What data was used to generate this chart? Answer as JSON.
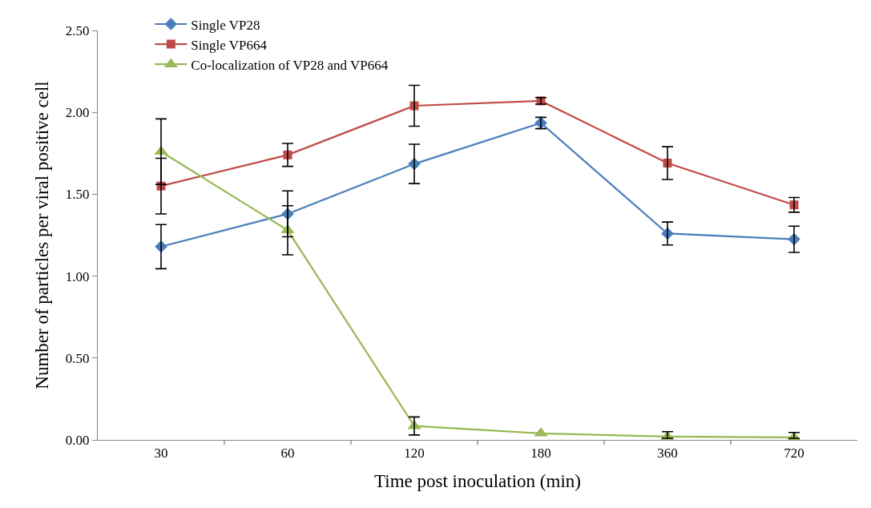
{
  "chart_data": {
    "type": "line",
    "xlabel": "Time post inoculation (min)",
    "ylabel": "Number of particles per viral positive cell",
    "categories": [
      "30",
      "60",
      "120",
      "180",
      "360",
      "720"
    ],
    "series": [
      {
        "name": "Single VP28",
        "color": "#4a7ebb",
        "marker": "diamond",
        "values": [
          1.18,
          1.38,
          1.685,
          1.935,
          1.26,
          1.225
        ],
        "errors": [
          0.135,
          0.14,
          0.12,
          0.035,
          0.07,
          0.08
        ]
      },
      {
        "name": "Single VP664",
        "color": "#be4b48",
        "marker": "square",
        "values": [
          1.55,
          1.74,
          2.04,
          2.07,
          1.69,
          1.435
        ],
        "errors": [
          0.17,
          0.07,
          0.125,
          0.02,
          0.1,
          0.045
        ]
      },
      {
        "name": "Co-localization of VP28 and VP664",
        "color": "#98b954",
        "marker": "triangle",
        "values": [
          1.76,
          1.28,
          0.085,
          0.04,
          0.02,
          0.015
        ],
        "errors": [
          0.2,
          0.15,
          0.055,
          null,
          [
            0.01,
            0.05
          ],
          [
            0.01,
            0.045
          ]
        ]
      }
    ],
    "ylim": [
      0,
      2.5
    ],
    "yticks": [
      {
        "value": 0,
        "label": "0.00"
      },
      {
        "value": 0.5,
        "label": "0.50"
      },
      {
        "value": 1,
        "label": "1.00"
      },
      {
        "value": 1.5,
        "label": "1.50"
      },
      {
        "value": 2,
        "label": "2.00"
      },
      {
        "value": 2.5,
        "label": "2.50"
      }
    ],
    "legend": "top left",
    "line_style": "solid"
  }
}
